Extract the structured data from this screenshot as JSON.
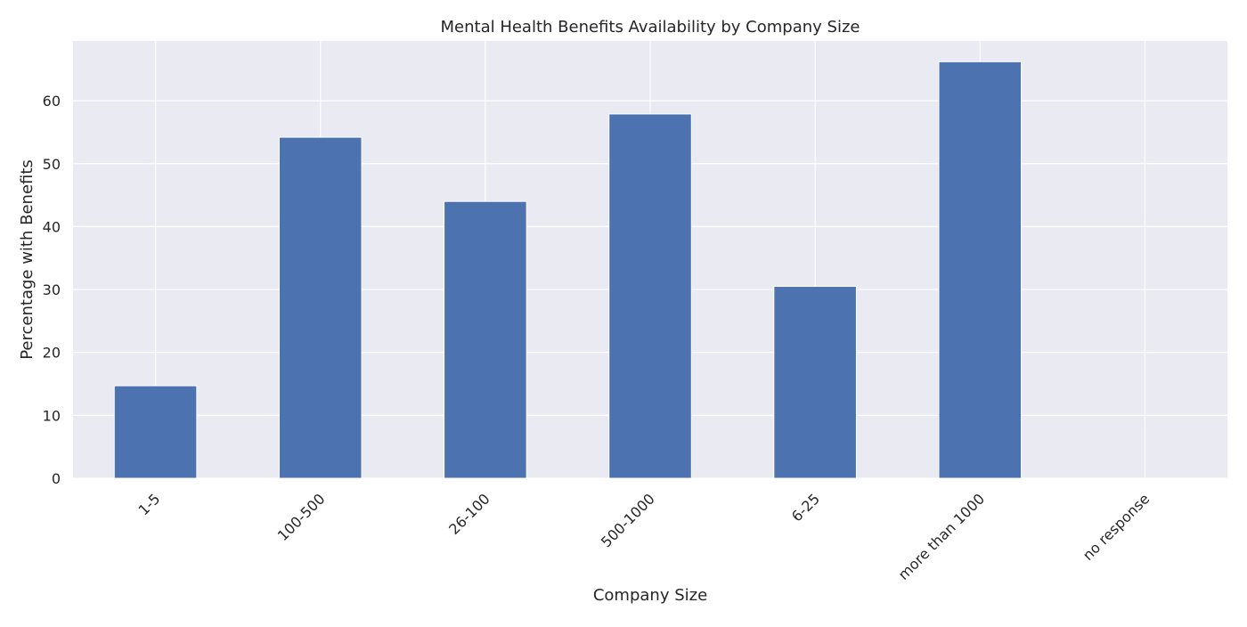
{
  "chart_data": {
    "type": "bar",
    "title": "Mental Health Benefits Availability by Company Size",
    "xlabel": "Company Size",
    "ylabel": "Percentage with Benefits",
    "categories": [
      "1-5",
      "100-500",
      "26-100",
      "500-1000",
      "6-25",
      "more than 1000",
      "no response"
    ],
    "values": [
      14.7,
      54.2,
      44.0,
      57.9,
      30.5,
      66.2,
      0
    ],
    "ylim": [
      0,
      69.5
    ],
    "yticks": [
      0,
      10,
      20,
      30,
      40,
      50,
      60
    ],
    "grid": true,
    "legend": "none",
    "colors": {
      "bar": "#4c72b0",
      "plot_background": "#eaeaf2",
      "grid": "#ffffff"
    }
  }
}
